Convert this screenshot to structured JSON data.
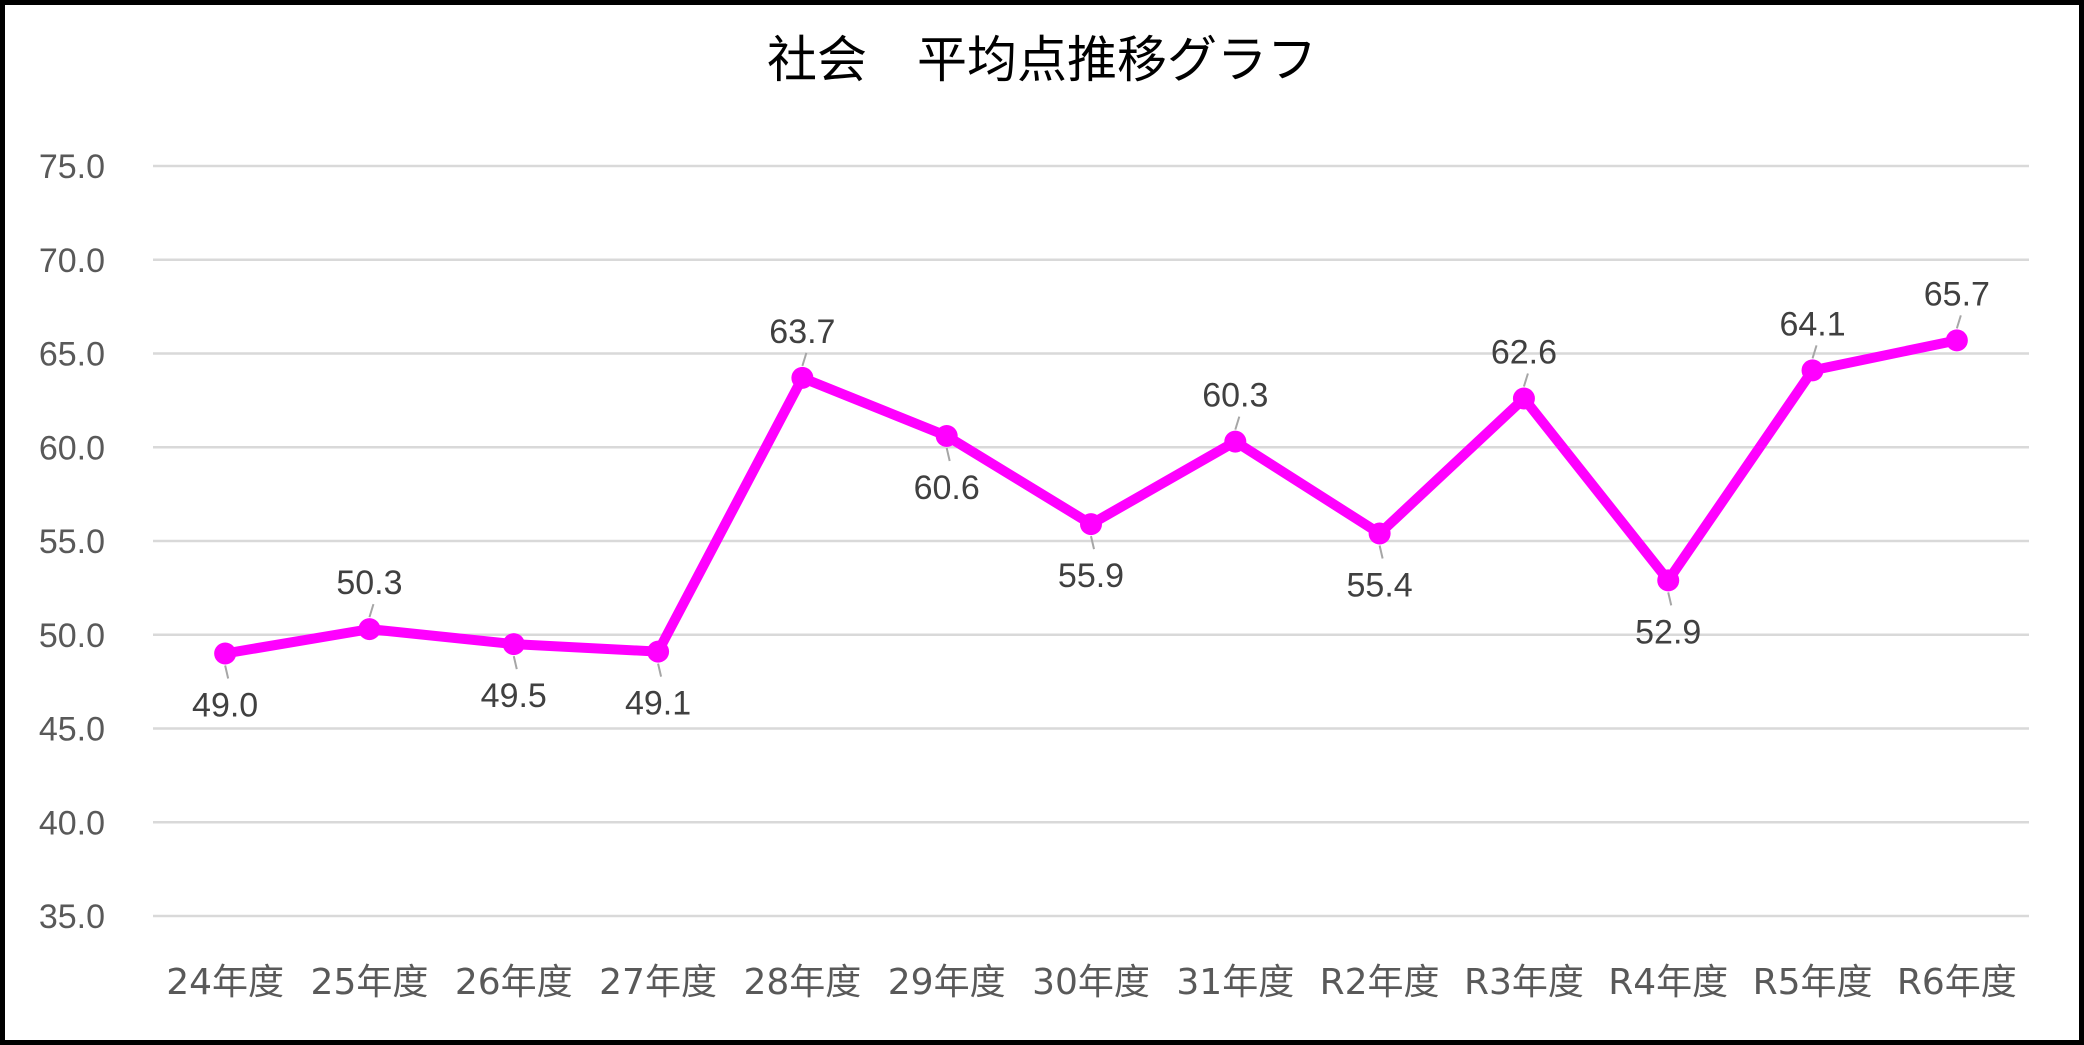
{
  "chart_data": {
    "type": "line",
    "title": "社会　平均点推移グラフ",
    "xlabel": "",
    "ylabel": "",
    "categories": [
      "24年度",
      "25年度",
      "26年度",
      "27年度",
      "28年度",
      "29年度",
      "30年度",
      "31年度",
      "R2年度",
      "R3年度",
      "R4年度",
      "R5年度",
      "R6年度"
    ],
    "series": [
      {
        "values": [
          49.0,
          50.3,
          49.5,
          49.1,
          63.7,
          60.6,
          55.9,
          60.3,
          55.4,
          62.6,
          52.9,
          64.1,
          65.7
        ],
        "labels": [
          "49.0",
          "50.3",
          "49.5",
          "49.1",
          "63.7",
          "60.6",
          "55.9",
          "60.3",
          "55.4",
          "62.6",
          "52.9",
          "64.1",
          "65.7"
        ],
        "label_side": [
          "below",
          "above",
          "below",
          "below",
          "above",
          "below",
          "below",
          "above",
          "below",
          "above",
          "below",
          "above",
          "above"
        ],
        "color": "#FF00FF"
      }
    ],
    "ylim": [
      35.0,
      75.0
    ],
    "yticks": [
      "35.0",
      "40.0",
      "45.0",
      "50.0",
      "55.0",
      "60.0",
      "65.0",
      "70.0",
      "75.0"
    ],
    "grid": true,
    "legend": "none"
  },
  "colors": {
    "line": "#FF00FF",
    "grid": "#D9D9D9",
    "tick_text": "#595959",
    "label_text": "#404040",
    "leader": "#A6A6A6"
  }
}
